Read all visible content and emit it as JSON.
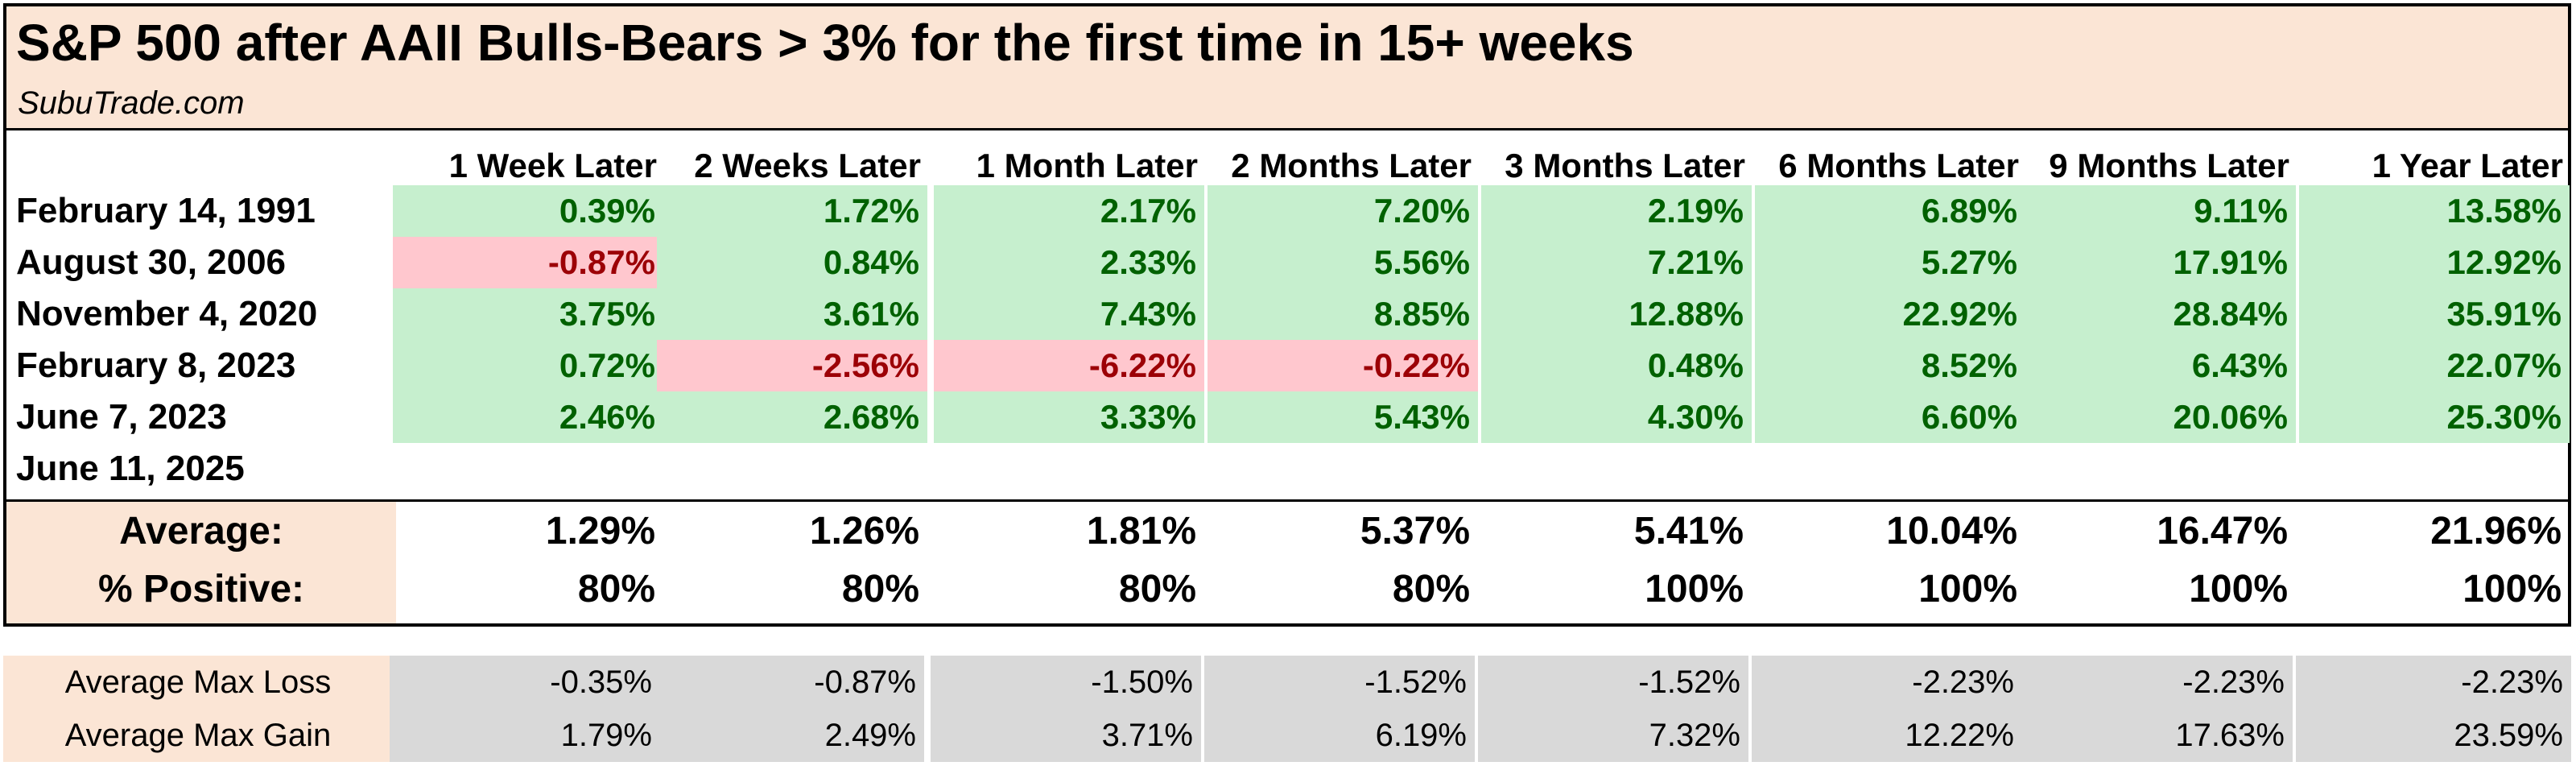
{
  "title": "S&P 500 after AAII Bulls-Bears > 3% for the first time in 15+ weeks",
  "subtitle": "SubuTrade.com",
  "columns": [
    "1 Week Later",
    "2 Weeks Later",
    "1 Month Later",
    "2 Months Later",
    "3 Months Later",
    "6 Months Later",
    "9 Months Later",
    "1 Year Later"
  ],
  "rows": [
    {
      "date": "February 14, 1991",
      "values": [
        "0.39%",
        "1.72%",
        "2.17%",
        "7.20%",
        "2.19%",
        "6.89%",
        "9.11%",
        "13.58%"
      ]
    },
    {
      "date": "August 30, 2006",
      "values": [
        "-0.87%",
        "0.84%",
        "2.33%",
        "5.56%",
        "7.21%",
        "5.27%",
        "17.91%",
        "12.92%"
      ]
    },
    {
      "date": "November 4, 2020",
      "values": [
        "3.75%",
        "3.61%",
        "7.43%",
        "8.85%",
        "12.88%",
        "22.92%",
        "28.84%",
        "35.91%"
      ]
    },
    {
      "date": "February 8, 2023",
      "values": [
        "0.72%",
        "-2.56%",
        "-6.22%",
        "-0.22%",
        "0.48%",
        "8.52%",
        "6.43%",
        "22.07%"
      ]
    },
    {
      "date": "June 7, 2023",
      "values": [
        "2.46%",
        "2.68%",
        "3.33%",
        "5.43%",
        "4.30%",
        "6.60%",
        "20.06%",
        "25.30%"
      ]
    },
    {
      "date": "June 11, 2025",
      "values": [
        "",
        "",
        "",
        "",
        "",
        "",
        "",
        ""
      ]
    }
  ],
  "summary": {
    "average": {
      "label": "Average:",
      "values": [
        "1.29%",
        "1.26%",
        "1.81%",
        "5.37%",
        "5.41%",
        "10.04%",
        "16.47%",
        "21.96%"
      ]
    },
    "positive": {
      "label": "% Positive:",
      "values": [
        "80%",
        "80%",
        "80%",
        "80%",
        "100%",
        "100%",
        "100%",
        "100%"
      ]
    }
  },
  "stats": {
    "max_loss": {
      "label": "Average Max Loss",
      "values": [
        "-0.35%",
        "-0.87%",
        "-1.50%",
        "-1.52%",
        "-1.52%",
        "-2.23%",
        "-2.23%",
        "-2.23%"
      ]
    },
    "max_gain": {
      "label": "Average Max Gain",
      "values": [
        "1.79%",
        "2.49%",
        "3.71%",
        "6.19%",
        "7.32%",
        "12.22%",
        "17.63%",
        "23.59%"
      ]
    }
  },
  "colors": {
    "header_bg": "#fbe5d5",
    "positive_bg": "#c6efce",
    "positive_text": "#006100",
    "negative_bg": "#ffc7ce",
    "negative_text": "#9c0006",
    "stats_bg": "#d9d9d9"
  }
}
